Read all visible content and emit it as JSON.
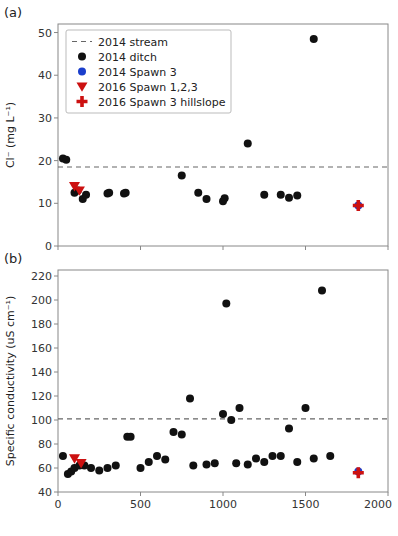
{
  "chart_data": [
    {
      "type": "scatter",
      "title": "(a)",
      "ylabel": "Cl⁻ (mg L⁻¹)",
      "xlim": [
        0,
        2000
      ],
      "xticks": [
        0,
        500,
        1000,
        1500,
        2000
      ],
      "ylim": [
        0,
        52
      ],
      "yticks": [
        0,
        10,
        20,
        30,
        40,
        50
      ],
      "tick_labels": "y",
      "legend": "upper left",
      "series": [
        {
          "name": "2014 stream",
          "type": "hline",
          "line_style": "dashed",
          "color": "#666666",
          "values": [
            18.5
          ]
        },
        {
          "name": "2014 ditch",
          "marker": "circle",
          "color": "#111111",
          "x": [
            30,
            50,
            100,
            120,
            150,
            170,
            300,
            310,
            400,
            410,
            750,
            850,
            900,
            1000,
            1010,
            1150,
            1250,
            1350,
            1400,
            1450,
            1550
          ],
          "values": [
            20.5,
            20.2,
            12.5,
            13.0,
            11.0,
            12.0,
            12.3,
            12.5,
            12.3,
            12.5,
            16.5,
            12.5,
            11.0,
            10.5,
            11.2,
            24.0,
            12.0,
            12.0,
            11.3,
            11.8,
            48.5
          ]
        },
        {
          "name": "2014 Spawn 3",
          "marker": "circle",
          "color": "#1a3ecc",
          "x": [
            1820
          ],
          "values": [
            9.5
          ]
        },
        {
          "name": "2016 Spawn 1,2,3",
          "marker": "triangle-down",
          "color": "#cc1111",
          "x": [
            100,
            130
          ],
          "values": [
            14.0,
            13.0
          ]
        },
        {
          "name": "2016 Spawn 3 hillslope",
          "marker": "plus",
          "color": "#cc1111",
          "x": [
            1820
          ],
          "values": [
            9.5
          ]
        }
      ]
    },
    {
      "type": "scatter",
      "title": "(b)",
      "ylabel": "Specific conductivity (uS cm⁻¹)",
      "xlim": [
        0,
        2000
      ],
      "xticks": [
        0,
        500,
        1000,
        1500,
        2000
      ],
      "ylim": [
        40,
        225
      ],
      "yticks": [
        40,
        60,
        80,
        100,
        120,
        140,
        160,
        180,
        200,
        220
      ],
      "series": [
        {
          "type": "hline",
          "line_style": "dashed",
          "color": "#666666",
          "values": [
            101
          ]
        },
        {
          "marker": "circle",
          "color": "#111111",
          "x": [
            30,
            60,
            80,
            100,
            130,
            160,
            200,
            250,
            300,
            350,
            420,
            440,
            500,
            550,
            600,
            650,
            700,
            750,
            800,
            820,
            900,
            950,
            1000,
            1020,
            1050,
            1080,
            1100,
            1150,
            1200,
            1250,
            1300,
            1350,
            1400,
            1450,
            1500,
            1550,
            1600,
            1650
          ],
          "values": [
            70,
            55,
            57,
            60,
            62,
            62,
            60,
            58,
            60,
            62,
            86,
            86,
            60,
            65,
            70,
            67,
            90,
            88,
            118,
            62,
            63,
            64,
            105,
            197,
            100,
            64,
            110,
            63,
            68,
            65,
            70,
            70,
            93,
            65,
            110,
            68,
            208,
            70
          ]
        },
        {
          "marker": "circle",
          "color": "#1a3ecc",
          "x": [
            1820
          ],
          "values": [
            57
          ]
        },
        {
          "marker": "triangle-down",
          "color": "#cc1111",
          "x": [
            100,
            140
          ],
          "values": [
            68,
            64
          ]
        },
        {
          "marker": "plus",
          "color": "#cc1111",
          "x": [
            1820
          ],
          "values": [
            56
          ]
        }
      ]
    }
  ]
}
